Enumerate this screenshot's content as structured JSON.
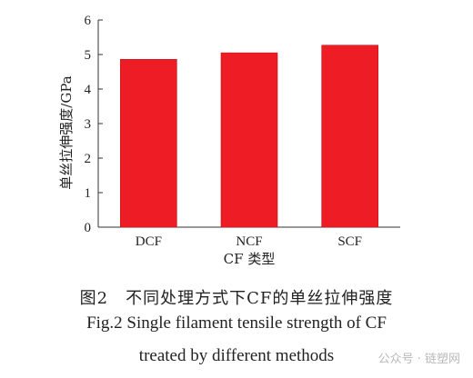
{
  "chart_data": {
    "type": "bar",
    "categories": [
      "DCF",
      "NCF",
      "SCF"
    ],
    "values": [
      4.86,
      5.05,
      5.27
    ],
    "xlabel": "CF 类型",
    "ylabel": "单丝拉伸强度/GPa",
    "ylim": [
      0,
      6
    ],
    "yticks": [
      0,
      1,
      2,
      3,
      4,
      5,
      6
    ],
    "grid": false,
    "bar_color": "#ee1c25"
  },
  "caption": {
    "zh": "图2　不同处理方式下CF的单丝拉伸强度",
    "en_line1": "Fig.2 Single filament tensile strength of CF",
    "en_line2": "treated by different methods"
  },
  "watermark": "公众号 · 链塑网"
}
